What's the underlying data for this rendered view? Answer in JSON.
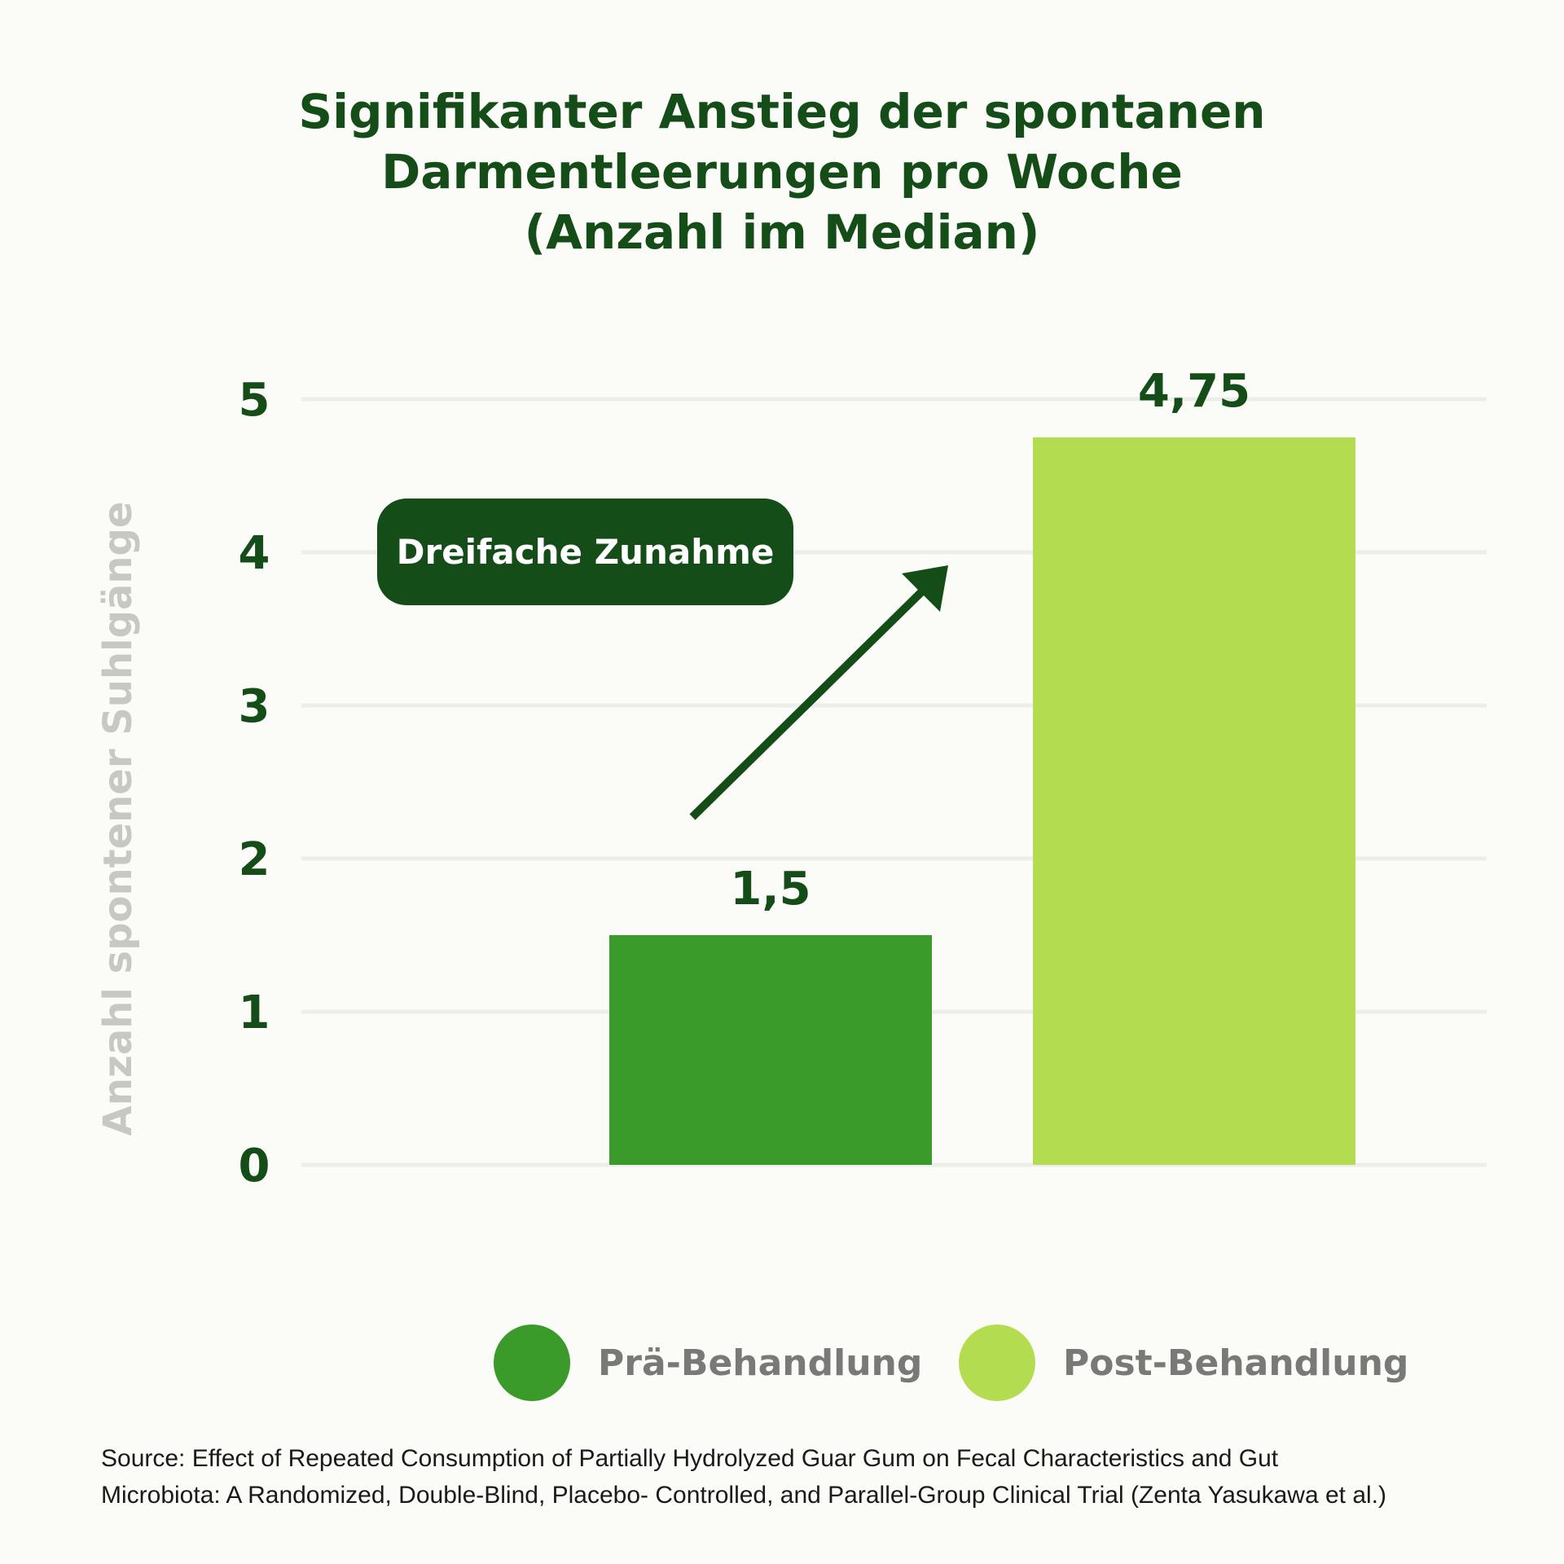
{
  "chart_data": {
    "type": "bar",
    "title": [
      "Signifikanter Anstieg der spontanen",
      "Darmentleerungen pro Woche",
      "(Anzahl im Median)"
    ],
    "ylabel": "Anzahl spontener Suhlgänge",
    "ylim": [
      0,
      5
    ],
    "yticks": [
      "0",
      "1",
      "2",
      "3",
      "4",
      "5"
    ],
    "grid": true,
    "series": [
      {
        "name": "Prä-Behandlung",
        "value": 1.5,
        "label": "1,5",
        "color": "#3a9a2a"
      },
      {
        "name": "Post-Behandlung",
        "value": 4.75,
        "label": "4,75",
        "color": "#b3dc50"
      }
    ],
    "legend_position": "bottom",
    "annotation": {
      "text": "Dreifache Zunahme",
      "arrow": "up-right"
    }
  },
  "source": [
    "Source: Effect of Repeated Consumption of Partially Hydrolyzed Guar Gum on Fecal Characteristics and Gut",
    "Microbiota: A Randomized, Double-Blind, Placebo- Controlled, and Parallel-Group Clinical Trial (Zenta Yasukawa et al.)"
  ],
  "colors": {
    "title": "#154d19",
    "tick_label": "#154d19",
    "grid": "#ededea",
    "ylabel": "#c7c8c4",
    "legend_text": "#787a77",
    "callout_bg": "#154d19",
    "arrow": "#154d19"
  }
}
